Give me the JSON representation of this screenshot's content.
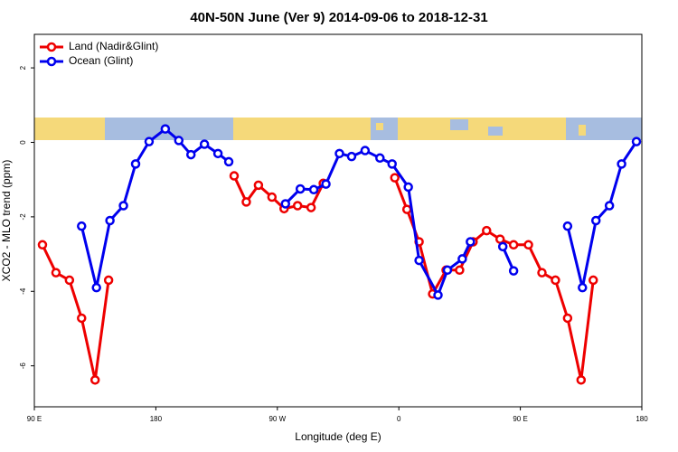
{
  "chart_data": {
    "type": "line",
    "title": "40N-50N June (Ver 9)   2014-09-06 to 2018-12-31",
    "x_label": "Longitude (deg E)",
    "y_label": "XCO2 - MLO trend (ppm)",
    "xlim": [
      90,
      540
    ],
    "xticks": [
      {
        "value": 90,
        "label": "90 E"
      },
      {
        "value": 180,
        "label": "180"
      },
      {
        "value": 270,
        "label": "90 W"
      },
      {
        "value": 360,
        "label": "0"
      },
      {
        "value": 450,
        "label": "90 E"
      },
      {
        "value": 540,
        "label": "180"
      }
    ],
    "ylim": [
      -7.1,
      2.9
    ],
    "yticks": [
      -6,
      -4,
      -2,
      0,
      2
    ],
    "legend": "top-left",
    "series": [
      {
        "name": "Land (Nadir&Glint)",
        "color": "#ee0000",
        "x": [
          96,
          106,
          116,
          125,
          135,
          145,
          156,
          238,
          247,
          256,
          266,
          275,
          285,
          295,
          304,
          330,
          357,
          366,
          375,
          385,
          395,
          405,
          415,
          425,
          435,
          445,
          456,
          466,
          476,
          485,
          495,
          504
        ],
        "values": [
          -2.75,
          -3.5,
          -3.7,
          -4.72,
          -6.38,
          -3.7,
          null,
          -0.9,
          -1.6,
          -1.15,
          -1.47,
          -1.78,
          -1.7,
          -1.75,
          -1.1,
          null,
          -0.95,
          -1.8,
          -2.67,
          -4.07,
          -3.43,
          -3.43,
          -2.67,
          -2.37,
          -2.6,
          -2.75,
          -2.75,
          -3.5,
          -3.7,
          -4.72,
          -6.38,
          -3.7
        ]
      },
      {
        "name": "Ocean (Glint)",
        "color": "#0000ee",
        "x": [
          125,
          136,
          146,
          156,
          165,
          175,
          187,
          197,
          206,
          216,
          226,
          234,
          256,
          276,
          287,
          297,
          306,
          316,
          325,
          335,
          346,
          355,
          367,
          375,
          389,
          396,
          407,
          413,
          425,
          437,
          445,
          465,
          485,
          496,
          506,
          516,
          525,
          536
        ],
        "values": [
          -2.25,
          -3.9,
          -2.1,
          -1.7,
          -0.58,
          0.02,
          0.36,
          0.05,
          -0.33,
          -0.05,
          -0.3,
          -0.52,
          null,
          -1.65,
          -1.25,
          -1.27,
          -1.12,
          -0.3,
          -0.38,
          -0.22,
          -0.42,
          -0.58,
          -1.2,
          -3.17,
          -4.1,
          -3.43,
          -3.13,
          -2.67,
          null,
          -2.8,
          -3.45,
          null,
          -2.25,
          -3.9,
          -2.1,
          -1.7,
          -0.58,
          0.02
        ]
      }
    ]
  }
}
